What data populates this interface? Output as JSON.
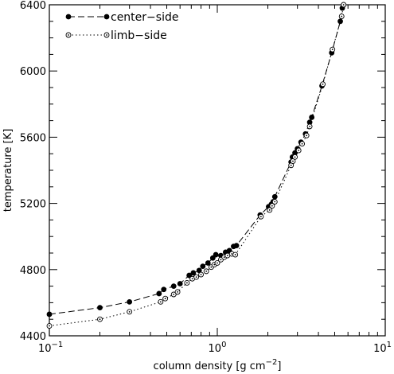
{
  "chart_data": {
    "type": "line",
    "xlabel": "column density [g cm",
    "xlabel_sup": "−2",
    "xlabel_end": "]",
    "ylabel": "temperature [K]",
    "x_scale": "log",
    "xlim": [
      0.1,
      10
    ],
    "ylim": [
      4400,
      6400
    ],
    "x_ticks": [
      {
        "value": 0.1,
        "base": "10",
        "exp": "−1"
      },
      {
        "value": 1,
        "base": "10",
        "exp": "0"
      },
      {
        "value": 10,
        "base": "10",
        "exp": "1"
      }
    ],
    "y_ticks": [
      4400,
      4800,
      5200,
      5600,
      6000,
      6400
    ],
    "grid": false,
    "legend_position": "top-left",
    "series": [
      {
        "name": "center−side",
        "line_style": "dashed",
        "marker": "filled-circle",
        "color": "#000000",
        "points": [
          [
            0.1,
            4530
          ],
          [
            0.2,
            4570
          ],
          [
            0.3,
            4605
          ],
          [
            0.45,
            4655
          ],
          [
            0.48,
            4680
          ],
          [
            0.55,
            4700
          ],
          [
            0.6,
            4715
          ],
          [
            0.68,
            4765
          ],
          [
            0.72,
            4780
          ],
          [
            0.78,
            4795
          ],
          [
            0.82,
            4820
          ],
          [
            0.88,
            4840
          ],
          [
            0.94,
            4870
          ],
          [
            0.98,
            4890
          ],
          [
            1.05,
            4885
          ],
          [
            1.12,
            4905
          ],
          [
            1.18,
            4915
          ],
          [
            1.25,
            4940
          ],
          [
            1.3,
            4945
          ],
          [
            1.8,
            5130
          ],
          [
            2.02,
            5180
          ],
          [
            2.1,
            5195
          ],
          [
            2.15,
            5210
          ],
          [
            2.2,
            5240
          ],
          [
            2.75,
            5450
          ],
          [
            2.8,
            5480
          ],
          [
            2.9,
            5505
          ],
          [
            3.0,
            5530
          ],
          [
            3.15,
            5570
          ],
          [
            3.35,
            5620
          ],
          [
            3.55,
            5690
          ],
          [
            3.65,
            5720
          ],
          [
            4.2,
            5910
          ],
          [
            4.8,
            6110
          ],
          [
            5.4,
            6300
          ],
          [
            5.55,
            6380
          ]
        ]
      },
      {
        "name": "limb−side",
        "line_style": "dotted",
        "marker": "open-circle",
        "color": "#000000",
        "points": [
          [
            0.1,
            4460
          ],
          [
            0.2,
            4500
          ],
          [
            0.3,
            4545
          ],
          [
            0.46,
            4605
          ],
          [
            0.49,
            4625
          ],
          [
            0.55,
            4650
          ],
          [
            0.58,
            4665
          ],
          [
            0.66,
            4720
          ],
          [
            0.71,
            4745
          ],
          [
            0.75,
            4755
          ],
          [
            0.8,
            4770
          ],
          [
            0.86,
            4790
          ],
          [
            0.92,
            4815
          ],
          [
            0.96,
            4830
          ],
          [
            1.0,
            4840
          ],
          [
            1.05,
            4860
          ],
          [
            1.1,
            4875
          ],
          [
            1.15,
            4885
          ],
          [
            1.22,
            4895
          ],
          [
            1.28,
            4890
          ],
          [
            1.82,
            5120
          ],
          [
            2.05,
            5160
          ],
          [
            2.12,
            5185
          ],
          [
            2.2,
            5210
          ],
          [
            2.75,
            5430
          ],
          [
            2.82,
            5455
          ],
          [
            2.9,
            5480
          ],
          [
            3.05,
            5520
          ],
          [
            3.2,
            5560
          ],
          [
            3.4,
            5610
          ],
          [
            3.55,
            5665
          ],
          [
            4.25,
            5920
          ],
          [
            4.85,
            6130
          ],
          [
            5.5,
            6330
          ],
          [
            5.65,
            6400
          ]
        ]
      }
    ]
  }
}
